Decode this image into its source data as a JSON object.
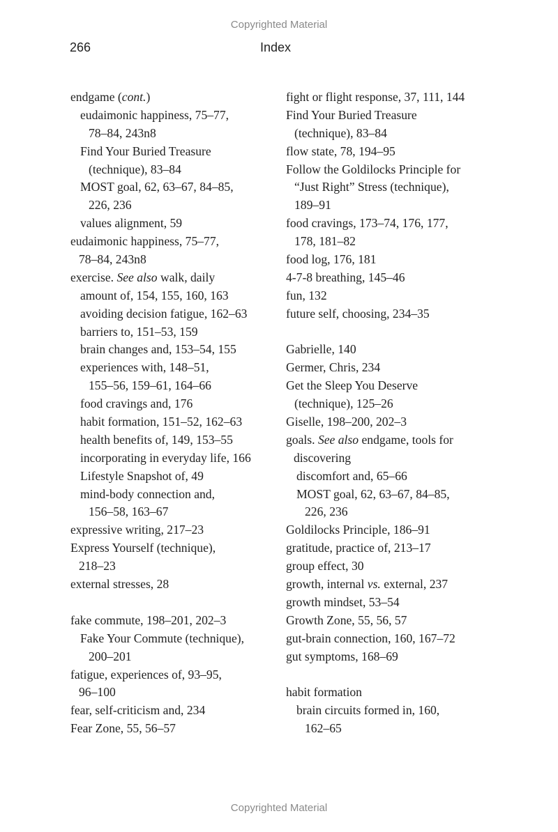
{
  "watermark_top": "Copyrighted Material",
  "watermark_bottom": "Copyrighted Material",
  "header": {
    "page_number": "266",
    "running_head": "Index"
  },
  "columns": [
    {
      "name": "left",
      "sections": [
        {
          "lines": [
            {
              "lv": "l0",
              "parts": [
                {
                  "t": "endgame ("
                },
                {
                  "t": "cont.",
                  "i": true
                },
                {
                  "t": ")"
                }
              ]
            },
            {
              "lv": "l2",
              "parts": [
                {
                  "t": "eudaimonic happiness, 75–77,"
                }
              ]
            },
            {
              "lv": "l3",
              "parts": [
                {
                  "t": "78–84, 243n8"
                }
              ]
            },
            {
              "lv": "l2",
              "parts": [
                {
                  "t": "Find Your Buried Treasure"
                }
              ]
            },
            {
              "lv": "l3",
              "parts": [
                {
                  "t": "(technique), 83–84"
                }
              ]
            },
            {
              "lv": "l2",
              "parts": [
                {
                  "t": "MOST goal, 62, 63–67, 84–85,"
                }
              ]
            },
            {
              "lv": "l3",
              "parts": [
                {
                  "t": "226, 236"
                }
              ]
            },
            {
              "lv": "l2",
              "parts": [
                {
                  "t": "values alignment, 59"
                }
              ]
            },
            {
              "lv": "l0",
              "parts": [
                {
                  "t": "eudaimonic happiness, 75–77,"
                }
              ]
            },
            {
              "lv": "l1",
              "parts": [
                {
                  "t": "78–84, 243n8"
                }
              ]
            },
            {
              "lv": "l0",
              "parts": [
                {
                  "t": "exercise. "
                },
                {
                  "t": "See also",
                  "i": true
                },
                {
                  "t": " walk, daily"
                }
              ]
            },
            {
              "lv": "l2",
              "parts": [
                {
                  "t": "amount of, 154, 155, 160, 163"
                }
              ]
            },
            {
              "lv": "l2",
              "parts": [
                {
                  "t": "avoiding decision fatigue, 162–63"
                }
              ]
            },
            {
              "lv": "l2",
              "parts": [
                {
                  "t": "barriers to, 151–53, 159"
                }
              ]
            },
            {
              "lv": "l2",
              "parts": [
                {
                  "t": "brain changes and, 153–54, 155"
                }
              ]
            },
            {
              "lv": "l2",
              "parts": [
                {
                  "t": "experiences with, 148–51,"
                }
              ]
            },
            {
              "lv": "l3",
              "parts": [
                {
                  "t": "155–56, 159–61, 164–66"
                }
              ]
            },
            {
              "lv": "l2",
              "parts": [
                {
                  "t": "food cravings and, 176"
                }
              ]
            },
            {
              "lv": "l2",
              "parts": [
                {
                  "t": "habit formation, 151–52, 162–63"
                }
              ]
            },
            {
              "lv": "l2",
              "parts": [
                {
                  "t": "health benefits of, 149, 153–55"
                }
              ]
            },
            {
              "lv": "l2",
              "parts": [
                {
                  "t": "incorporating in everyday life, 166"
                }
              ]
            },
            {
              "lv": "l2",
              "parts": [
                {
                  "t": "Lifestyle Snapshot of, 49"
                }
              ]
            },
            {
              "lv": "l2",
              "parts": [
                {
                  "t": "mind-body connection and,"
                }
              ]
            },
            {
              "lv": "l3",
              "parts": [
                {
                  "t": "156–58, 163–67"
                }
              ]
            },
            {
              "lv": "l0",
              "parts": [
                {
                  "t": "expressive writing, 217–23"
                }
              ]
            },
            {
              "lv": "l0",
              "parts": [
                {
                  "t": "Express Yourself (technique),"
                }
              ]
            },
            {
              "lv": "l1",
              "parts": [
                {
                  "t": "218–23"
                }
              ]
            },
            {
              "lv": "l0",
              "parts": [
                {
                  "t": "external stresses, 28"
                }
              ]
            }
          ]
        },
        {
          "lines": [
            {
              "lv": "l0",
              "parts": [
                {
                  "t": "fake commute, 198–201, 202–3"
                }
              ]
            },
            {
              "lv": "l2",
              "parts": [
                {
                  "t": "Fake Your Commute (technique),"
                }
              ]
            },
            {
              "lv": "l3",
              "parts": [
                {
                  "t": "200–201"
                }
              ]
            },
            {
              "lv": "l0",
              "parts": [
                {
                  "t": "fatigue, experiences of, 93–95,"
                }
              ]
            },
            {
              "lv": "l1",
              "parts": [
                {
                  "t": "96–100"
                }
              ]
            },
            {
              "lv": "l0",
              "parts": [
                {
                  "t": "fear, self-criticism and, 234"
                }
              ]
            },
            {
              "lv": "l0",
              "parts": [
                {
                  "t": "Fear Zone, 55, 56–57"
                }
              ]
            }
          ]
        }
      ]
    },
    {
      "name": "right",
      "sections": [
        {
          "lines": [
            {
              "lv": "l0",
              "parts": [
                {
                  "t": "fight or flight response, 37, 111, 144"
                }
              ]
            },
            {
              "lv": "l0",
              "parts": [
                {
                  "t": "Find Your Buried Treasure"
                }
              ]
            },
            {
              "lv": "l1",
              "parts": [
                {
                  "t": "(technique), 83–84"
                }
              ]
            },
            {
              "lv": "l0",
              "parts": [
                {
                  "t": "flow state, 78, 194–95"
                }
              ]
            },
            {
              "lv": "l0",
              "parts": [
                {
                  "t": "Follow the Goldilocks Principle for"
                }
              ]
            },
            {
              "lv": "l1",
              "parts": [
                {
                  "t": "“Just Right” Stress (technique),"
                }
              ]
            },
            {
              "lv": "l1",
              "parts": [
                {
                  "t": "189–91"
                }
              ]
            },
            {
              "lv": "l0",
              "parts": [
                {
                  "t": "food cravings, 173–74, 176, 177,"
                }
              ]
            },
            {
              "lv": "l1",
              "parts": [
                {
                  "t": "178, 181–82"
                }
              ]
            },
            {
              "lv": "l0",
              "parts": [
                {
                  "t": "food log, 176, 181"
                }
              ]
            },
            {
              "lv": "l0",
              "parts": [
                {
                  "t": "4-7-8 breathing, 145–46"
                }
              ]
            },
            {
              "lv": "l0",
              "parts": [
                {
                  "t": "fun, 132"
                }
              ]
            },
            {
              "lv": "l0",
              "parts": [
                {
                  "t": "future self, choosing, 234–35"
                }
              ]
            }
          ]
        },
        {
          "lines": [
            {
              "lv": "l0",
              "parts": [
                {
                  "t": "Gabrielle, 140"
                }
              ]
            },
            {
              "lv": "l0",
              "parts": [
                {
                  "t": "Germer, Chris, 234"
                }
              ]
            },
            {
              "lv": "l0",
              "parts": [
                {
                  "t": "Get the Sleep You Deserve"
                }
              ]
            },
            {
              "lv": "l1",
              "parts": [
                {
                  "t": "(technique), 125–26"
                }
              ]
            },
            {
              "lv": "l0",
              "parts": [
                {
                  "t": "Giselle, 198–200, 202–3"
                }
              ]
            },
            {
              "lv": "l0",
              "parts": [
                {
                  "t": "goals. "
                },
                {
                  "t": "See also",
                  "i": true
                },
                {
                  "t": " endgame, tools for"
                }
              ]
            },
            {
              "lv": "r1",
              "parts": [
                {
                  "t": "discovering"
                }
              ]
            },
            {
              "lv": "r2",
              "parts": [
                {
                  "t": "discomfort and, 65–66"
                }
              ]
            },
            {
              "lv": "r2",
              "parts": [
                {
                  "t": "MOST goal, 62, 63–67, 84–85,"
                }
              ]
            },
            {
              "lv": "r3",
              "parts": [
                {
                  "t": "226, 236"
                }
              ]
            },
            {
              "lv": "l0",
              "parts": [
                {
                  "t": "Goldilocks Principle, 186–91"
                }
              ]
            },
            {
              "lv": "l0",
              "parts": [
                {
                  "t": "gratitude, practice of, 213–17"
                }
              ]
            },
            {
              "lv": "l0",
              "parts": [
                {
                  "t": "group effect, 30"
                }
              ]
            },
            {
              "lv": "l0",
              "parts": [
                {
                  "t": "growth, internal "
                },
                {
                  "t": "vs.",
                  "i": true
                },
                {
                  "t": " external, 237"
                }
              ]
            },
            {
              "lv": "l0",
              "parts": [
                {
                  "t": "growth mindset, 53–54"
                }
              ]
            },
            {
              "lv": "l0",
              "parts": [
                {
                  "t": "Growth Zone, 55, 56, 57"
                }
              ]
            },
            {
              "lv": "l0",
              "parts": [
                {
                  "t": "gut-brain connection, 160, 167–72"
                }
              ]
            },
            {
              "lv": "l0",
              "parts": [
                {
                  "t": "gut symptoms, 168–69"
                }
              ]
            }
          ]
        },
        {
          "lines": [
            {
              "lv": "l0",
              "parts": [
                {
                  "t": "habit formation"
                }
              ]
            },
            {
              "lv": "r2",
              "parts": [
                {
                  "t": "brain circuits formed in, 160,"
                }
              ]
            },
            {
              "lv": "r3",
              "parts": [
                {
                  "t": "162–65"
                }
              ]
            }
          ]
        }
      ]
    }
  ]
}
